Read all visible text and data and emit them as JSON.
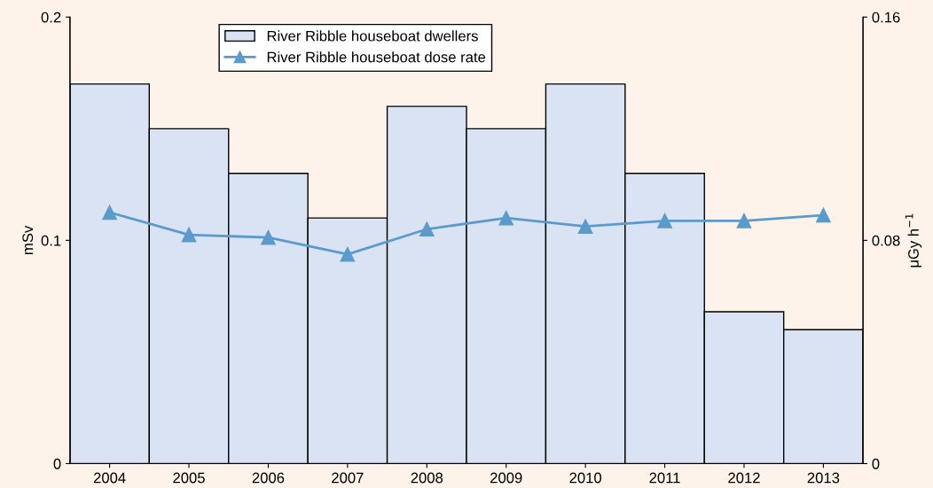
{
  "chart_data": {
    "type": "bar",
    "ylabel": "mSv",
    "y2label": "μGy h$^{−1}$",
    "categories": [
      "2004",
      "2005",
      "2006",
      "2007",
      "2008",
      "2009",
      "2010",
      "2011",
      "2012",
      "2013"
    ],
    "series": [
      {
        "name": "River Ribble houseboat dwellers",
        "color": "#d9e3f3",
        "values": [
          0.17,
          0.15,
          0.13,
          0.11,
          0.16,
          0.15,
          0.17,
          0.13,
          0.068,
          0.06
        ]
      },
      {
        "name": "River Ribble houseboat dose rate",
        "type": "line",
        "axis": "y2",
        "color": "#5b9bcb",
        "marker": "triangle",
        "line_style": "solid",
        "values": [
          0.09,
          0.082,
          0.081,
          0.075,
          0.084,
          0.088,
          0.085,
          0.087,
          0.087,
          0.089
        ]
      }
    ],
    "ylim": [
      0,
      0.2
    ],
    "yticks": [
      0,
      0.1,
      0.2
    ],
    "y2lim": [
      0,
      0.16
    ],
    "y2ticks": [
      0,
      0.08,
      0.16
    ],
    "grid": false,
    "legend": "top"
  }
}
